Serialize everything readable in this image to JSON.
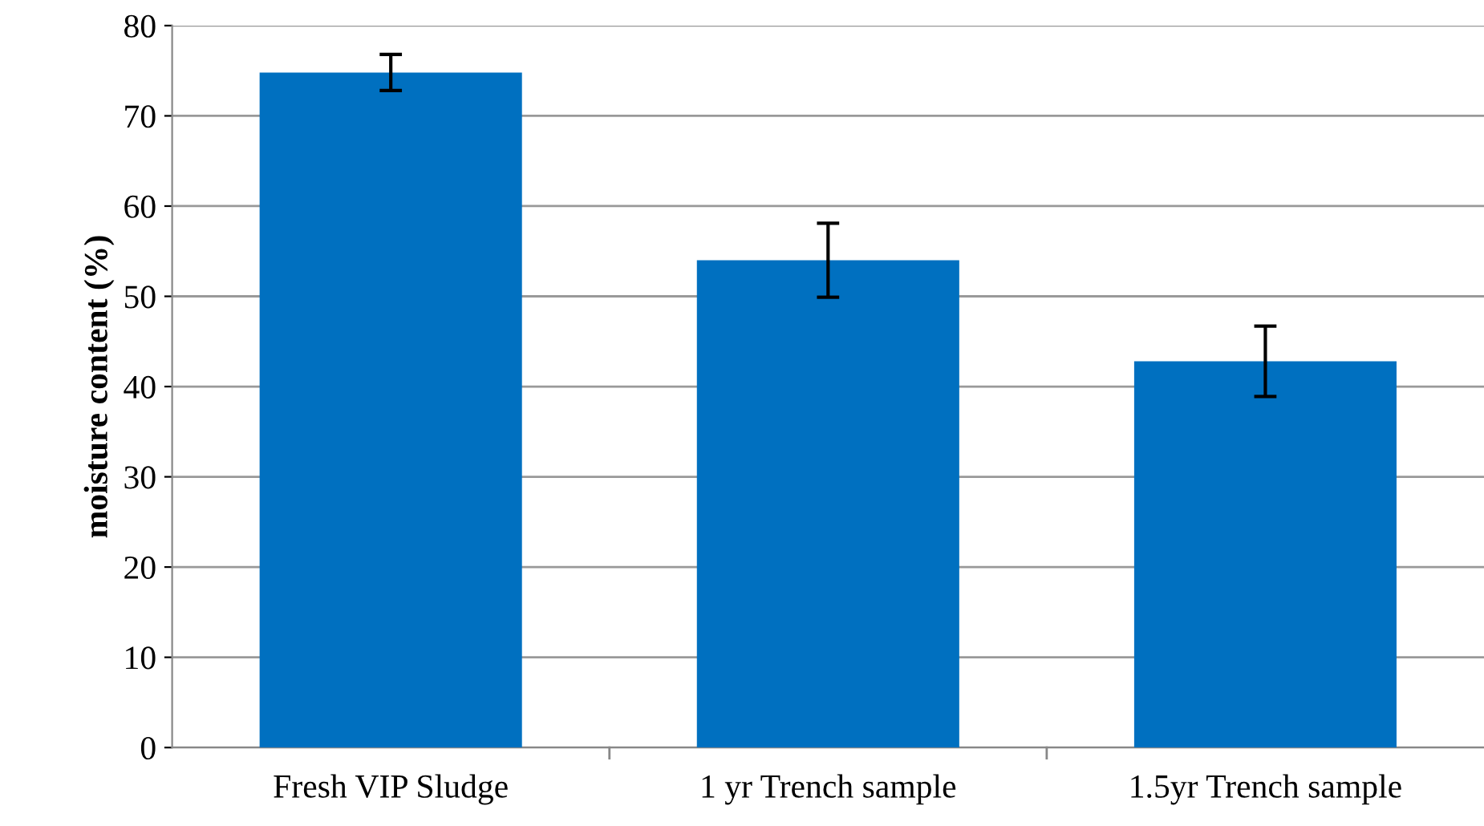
{
  "chart_data": {
    "type": "bar",
    "ylabel": "moisture content (%)",
    "categories": [
      "Fresh VIP Sludge",
      "1 yr Trench sample",
      "1.5yr Trench sample"
    ],
    "values": [
      74.8,
      54.0,
      42.8
    ],
    "errors": [
      2.0,
      4.1,
      3.9
    ],
    "color": "#0070c0",
    "ylim": [
      0,
      80
    ],
    "yticks": [
      0,
      10,
      20,
      30,
      40,
      50,
      60,
      70,
      80
    ],
    "grid": "y"
  }
}
